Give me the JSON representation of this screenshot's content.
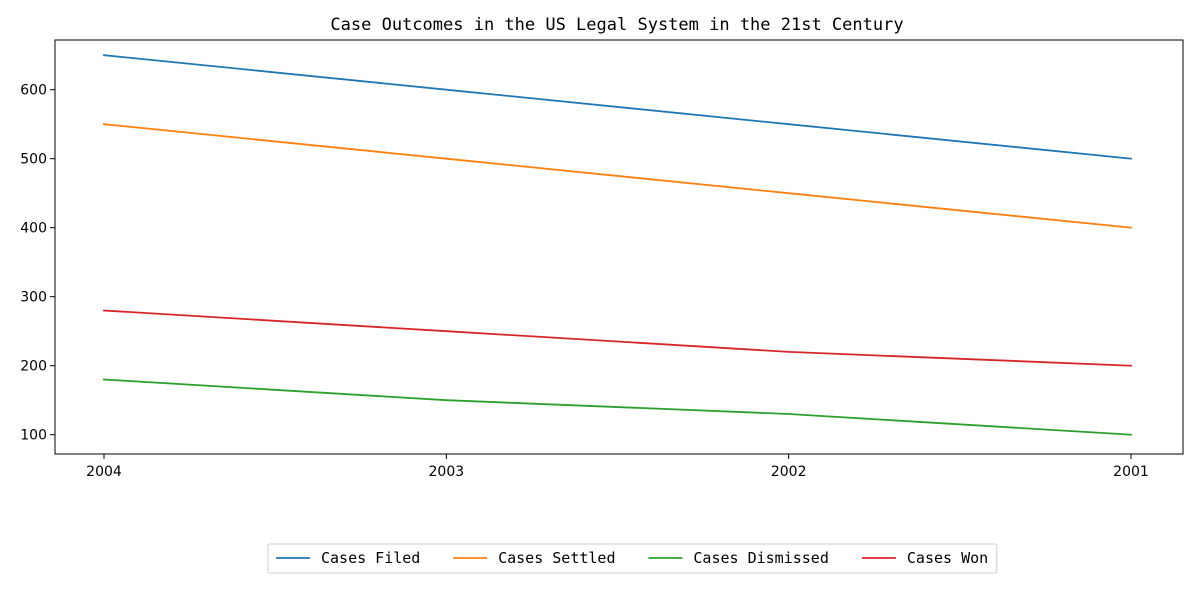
{
  "chart_data": {
    "type": "line",
    "title": "Case Outcomes in the US Legal System in the 21st Century",
    "xlabel": "",
    "ylabel": "",
    "categories": [
      "2004",
      "2003",
      "2002",
      "2001"
    ],
    "ylim": [
      72,
      672
    ],
    "yticks": [
      100,
      200,
      300,
      400,
      500,
      600
    ],
    "grid": false,
    "legend_position": "bottom-center",
    "series": [
      {
        "name": "Cases Filed",
        "color": "#1f77b4",
        "values": [
          650,
          600,
          550,
          500
        ]
      },
      {
        "name": "Cases Settled",
        "color": "#ff7f0e",
        "values": [
          550,
          500,
          450,
          400
        ]
      },
      {
        "name": "Cases Dismissed",
        "color": "#2ca02c",
        "values": [
          180,
          150,
          130,
          100
        ]
      },
      {
        "name": "Cases Won",
        "color": "#d62728",
        "values": [
          280,
          250,
          220,
          200
        ]
      }
    ]
  }
}
